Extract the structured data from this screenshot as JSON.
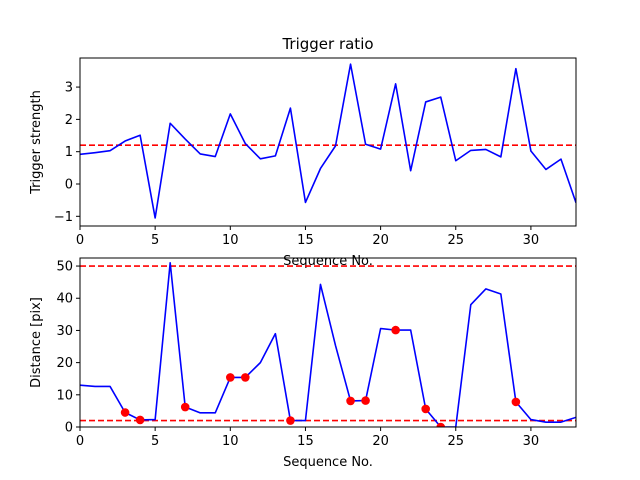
{
  "chart_data": [
    {
      "type": "line",
      "title": "Trigger ratio",
      "xlabel": "Sequence No.",
      "ylabel": "Trigger strength",
      "xlim": [
        0,
        33
      ],
      "ylim": [
        -1.3,
        3.9
      ],
      "xticks": [
        0,
        5,
        10,
        15,
        20,
        25,
        30
      ],
      "yticks": [
        -1,
        0,
        1,
        2,
        3
      ],
      "ytick_labels": [
        "−1",
        "0",
        "1",
        "2",
        "3"
      ],
      "series": [
        {
          "color": "#0000ff",
          "x": [
            0,
            1,
            2,
            3,
            4,
            5,
            6,
            7,
            8,
            9,
            10,
            11,
            12,
            13,
            14,
            15,
            16,
            17,
            18,
            19,
            20,
            21,
            22,
            23,
            24,
            25,
            26,
            27,
            28,
            29,
            30,
            31,
            32,
            33
          ],
          "values": [
            0.92,
            0.97,
            1.03,
            1.33,
            1.51,
            -1.05,
            1.88,
            1.39,
            0.93,
            0.85,
            2.17,
            1.25,
            0.78,
            0.87,
            2.35,
            -0.57,
            0.48,
            1.18,
            3.71,
            1.23,
            1.08,
            3.1,
            0.41,
            2.54,
            2.69,
            0.72,
            1.04,
            1.07,
            0.84,
            3.57,
            1.02,
            0.45,
            0.77,
            -0.58
          ]
        }
      ],
      "hlines": [
        {
          "y": 1.2,
          "color": "#ff0000",
          "style": "dashed"
        }
      ],
      "grid": false
    },
    {
      "type": "line",
      "title": "",
      "xlabel": "Sequence No.",
      "ylabel": "Distance [pix]",
      "xlim": [
        0,
        33
      ],
      "ylim": [
        0,
        52.5
      ],
      "xticks": [
        0,
        5,
        10,
        15,
        20,
        25,
        30
      ],
      "yticks": [
        0,
        10,
        20,
        30,
        40,
        50
      ],
      "ytick_labels": [
        "0",
        "10",
        "20",
        "30",
        "40",
        "50"
      ],
      "series": [
        {
          "color": "#0000ff",
          "x": [
            0,
            1,
            2,
            3,
            4,
            5,
            6,
            7,
            8,
            9,
            10,
            11,
            12,
            13,
            14,
            15,
            16,
            17,
            18,
            19,
            20,
            21,
            22,
            23,
            24,
            25,
            26,
            27,
            28,
            29,
            30,
            31,
            32,
            33
          ],
          "values": [
            13.0,
            12.6,
            12.6,
            4.5,
            2.2,
            2.3,
            51.0,
            6.2,
            4.4,
            4.4,
            15.4,
            15.4,
            20.0,
            29.0,
            2.0,
            2.0,
            44.3,
            25.3,
            8.1,
            8.2,
            30.6,
            30.1,
            30.1,
            5.6,
            0.0,
            0.0,
            38.0,
            42.9,
            41.3,
            7.8,
            2.3,
            1.5,
            1.5,
            3.0
          ]
        },
        {
          "color": "#ff0000",
          "marker": "circle",
          "x": [
            3,
            4,
            7,
            10,
            11,
            14,
            18,
            19,
            21,
            23,
            24,
            29
          ],
          "values": [
            4.5,
            2.2,
            6.2,
            15.4,
            15.4,
            2.0,
            8.1,
            8.2,
            30.1,
            5.6,
            0.0,
            7.8
          ]
        }
      ],
      "hlines": [
        {
          "y": 50,
          "color": "#ff0000",
          "style": "dashed"
        },
        {
          "y": 2,
          "color": "#ff0000",
          "style": "dashed"
        }
      ],
      "grid": false
    }
  ]
}
